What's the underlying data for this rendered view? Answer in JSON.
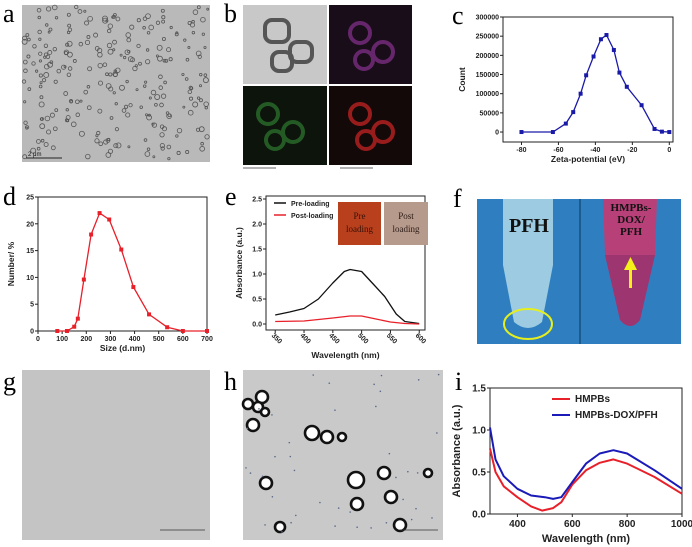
{
  "panels": {
    "a": {
      "label": "a",
      "scale_bar": "2 μm"
    },
    "b": {
      "label": "b"
    },
    "c": {
      "label": "c"
    },
    "d": {
      "label": "d"
    },
    "e": {
      "label": "e",
      "inset_pre": [
        "Pre",
        "loading"
      ],
      "inset_post": [
        "Post",
        "loading"
      ]
    },
    "f": {
      "label": "f",
      "left_text": "PFH",
      "right_text": [
        "HMPBs-",
        "DOX/",
        "PFH"
      ]
    },
    "g": {
      "label": "g"
    },
    "h": {
      "label": "h"
    },
    "i": {
      "label": "i"
    }
  },
  "chart_data": [
    {
      "id": "c",
      "type": "line",
      "xlabel": "Zeta-potential (eV)",
      "ylabel": "Count",
      "xlim": [
        -90,
        2
      ],
      "ylim": [
        -26000,
        300000
      ],
      "xticks": [
        -80,
        -60,
        -40,
        -20,
        0
      ],
      "yticks": [
        0,
        50000,
        100000,
        150000,
        200000,
        250000,
        300000
      ],
      "series": [
        {
          "color": "#1a1aa8",
          "markers": true,
          "x": [
            -80,
            -63,
            -56,
            -52,
            -48,
            -45,
            -41,
            -37,
            -34,
            -30,
            -27,
            -23,
            -15,
            -8,
            -4,
            0
          ],
          "y": [
            0,
            0,
            22000,
            52000,
            100000,
            148000,
            197000,
            242000,
            253000,
            214000,
            155000,
            118000,
            70000,
            8000,
            1000,
            0
          ]
        }
      ]
    },
    {
      "id": "d",
      "type": "line",
      "xlabel": "Size (d.nm)",
      "ylabel": "Number/ %",
      "xlim": [
        0,
        700
      ],
      "ylim": [
        0,
        25
      ],
      "xticks": [
        0,
        100,
        200,
        300,
        400,
        500,
        600,
        700
      ],
      "yticks": [
        0,
        5,
        10,
        15,
        20,
        25
      ],
      "series": [
        {
          "color": "#e8202a",
          "markers": true,
          "x": [
            80,
            120,
            150,
            165,
            190,
            220,
            255,
            295,
            345,
            395,
            460,
            535,
            600,
            700
          ],
          "y": [
            0,
            0,
            0.8,
            2.3,
            9.6,
            18,
            22,
            20.8,
            15.2,
            8.2,
            3.1,
            0.7,
            0,
            0
          ]
        }
      ]
    },
    {
      "id": "e",
      "type": "line",
      "xlabel": "Wavelength (nm)",
      "ylabel": "Absorbance (a.u.)",
      "xlim": [
        334,
        610
      ],
      "ylim": [
        -0.12,
        2.56
      ],
      "xticks": [
        350,
        400,
        450,
        500,
        550,
        600
      ],
      "yticks": [
        0.0,
        0.5,
        1.0,
        1.5,
        2.0,
        2.5
      ],
      "legend": "top-left",
      "series": [
        {
          "name": "Pre-loading",
          "color": "#111111",
          "x": [
            350,
            375,
            400,
            425,
            450,
            470,
            480,
            500,
            520,
            540,
            560,
            575,
            600
          ],
          "y": [
            0.18,
            0.24,
            0.31,
            0.5,
            0.82,
            1.05,
            1.09,
            1.05,
            0.8,
            0.55,
            0.2,
            0.05,
            0.01
          ]
        },
        {
          "name": "Post-loading",
          "color": "#e8202a",
          "x": [
            350,
            400,
            450,
            480,
            500,
            525,
            550,
            575,
            600
          ],
          "y": [
            0.05,
            0.06,
            0.12,
            0.16,
            0.16,
            0.1,
            0.04,
            0.01,
            0
          ]
        }
      ]
    },
    {
      "id": "i",
      "type": "line",
      "xlabel": "Wavelength (nm)",
      "ylabel": "Absorbance (a.u.)",
      "xlim": [
        300,
        1000
      ],
      "ylim": [
        0,
        1.5
      ],
      "xticks": [
        400,
        600,
        800,
        1000
      ],
      "yticks": [
        0.0,
        0.5,
        1.0,
        1.5
      ],
      "legend": "top-right",
      "series": [
        {
          "name": "HMPBs",
          "color": "#e8202a",
          "x": [
            300,
            320,
            350,
            400,
            450,
            490,
            530,
            560,
            600,
            650,
            700,
            750,
            800,
            900,
            1000
          ],
          "y": [
            0.78,
            0.5,
            0.33,
            0.2,
            0.09,
            0.04,
            0.07,
            0.14,
            0.35,
            0.52,
            0.61,
            0.65,
            0.6,
            0.44,
            0.24
          ]
        },
        {
          "name": "HMPBs-DOX/PFH",
          "color": "#1a1ab8",
          "x": [
            300,
            320,
            350,
            400,
            450,
            500,
            530,
            560,
            600,
            650,
            700,
            750,
            800,
            900,
            1000
          ],
          "y": [
            1.03,
            0.65,
            0.45,
            0.3,
            0.22,
            0.2,
            0.18,
            0.2,
            0.38,
            0.6,
            0.72,
            0.76,
            0.72,
            0.52,
            0.3
          ]
        }
      ]
    }
  ]
}
